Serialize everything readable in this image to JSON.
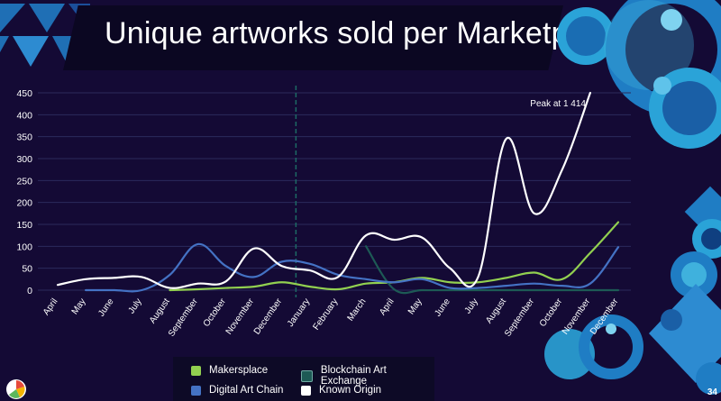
{
  "slide": {
    "title": "Unique artworks sold per Marketplace",
    "page_number": "34"
  },
  "chart_data": {
    "type": "line",
    "title": "Unique artworks sold per Marketplace",
    "categories": [
      "April",
      "May",
      "June",
      "July",
      "August",
      "September",
      "October",
      "November",
      "December",
      "January",
      "February",
      "March",
      "April",
      "May",
      "June",
      "July",
      "August",
      "September",
      "October",
      "November",
      "December"
    ],
    "ylim": [
      0,
      450
    ],
    "yticks": [
      0,
      50,
      100,
      150,
      200,
      250,
      300,
      350,
      400,
      450
    ],
    "grid": true,
    "divider_after_category": 8,
    "annotation": "Peak at 1 414",
    "series": [
      {
        "name": "Makersplace",
        "color": "#92d050",
        "values": [
          null,
          null,
          null,
          null,
          0,
          2,
          5,
          8,
          18,
          8,
          2,
          15,
          18,
          28,
          18,
          18,
          28,
          40,
          25,
          85,
          155
        ]
      },
      {
        "name": "Blockchain Art Exchange",
        "color": "#1d5a55",
        "values": [
          null,
          null,
          null,
          null,
          null,
          null,
          null,
          null,
          null,
          null,
          null,
          100,
          2,
          0,
          0,
          0,
          0,
          0,
          0,
          0,
          0
        ]
      },
      {
        "name": "Digital Art Chain",
        "color": "#4472c4",
        "values": [
          null,
          0,
          0,
          0,
          35,
          105,
          55,
          30,
          65,
          60,
          35,
          25,
          18,
          25,
          5,
          5,
          10,
          15,
          10,
          15,
          98
        ]
      },
      {
        "name": "Known Origin",
        "color": "#ffffff",
        "values": [
          12,
          25,
          28,
          30,
          5,
          15,
          20,
          95,
          55,
          45,
          30,
          125,
          115,
          120,
          50,
          30,
          345,
          175,
          275,
          450,
          null
        ]
      }
    ],
    "legend_position": "bottom"
  }
}
